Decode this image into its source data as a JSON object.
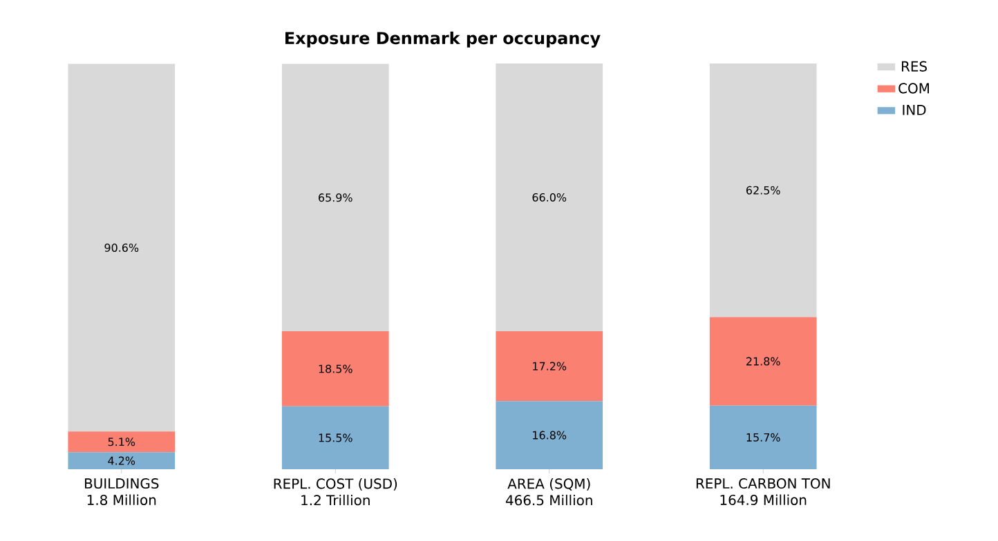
{
  "chart_data": {
    "type": "bar",
    "title": "Exposure Denmark per occupancy",
    "stacked": true,
    "categories": [
      "BUILDINGS\n1.8 Million",
      "REPL. COST (USD)\n1.2 Trillion",
      "AREA (SQM)\n466.5 Million",
      "REPL. CARBON TON\n164.9 Million"
    ],
    "series": [
      {
        "name": "IND",
        "color": "#7fafd1",
        "values": [
          4.2,
          15.5,
          16.8,
          15.7
        ],
        "value_labels": [
          "4.2%",
          "15.5%",
          "16.8%",
          "15.7%"
        ]
      },
      {
        "name": "COM",
        "color": "#fa8072",
        "values": [
          5.1,
          18.5,
          17.2,
          21.8
        ],
        "value_labels": [
          "5.1%",
          "18.5%",
          "17.2%",
          "21.8%"
        ]
      },
      {
        "name": "RES",
        "color": "#d9d9d9",
        "values": [
          90.6,
          65.9,
          66.0,
          62.5
        ],
        "value_labels": [
          "90.6%",
          "65.9%",
          "66.0%",
          "62.5%"
        ]
      }
    ],
    "ylim": [
      0,
      100
    ],
    "tick_labels": "x",
    "legend": "top right",
    "grid": false
  }
}
